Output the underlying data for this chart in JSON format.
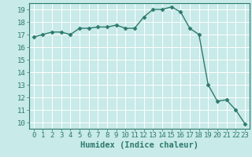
{
  "x": [
    0,
    1,
    2,
    3,
    4,
    5,
    6,
    7,
    8,
    9,
    10,
    11,
    12,
    13,
    14,
    15,
    16,
    17,
    18,
    19,
    20,
    21,
    22,
    23
  ],
  "y": [
    16.8,
    17.0,
    17.2,
    17.2,
    17.0,
    17.5,
    17.5,
    17.6,
    17.6,
    17.75,
    17.5,
    17.5,
    18.4,
    19.0,
    19.0,
    19.2,
    18.8,
    17.5,
    17.0,
    13.0,
    11.7,
    11.8,
    11.0,
    9.9
  ],
  "line_color": "#2d7a6e",
  "marker": "D",
  "marker_size": 2.5,
  "bg_color": "#c8eae8",
  "grid_color": "#ffffff",
  "xlabel": "Humidex (Indice chaleur)",
  "xlim": [
    -0.5,
    23.5
  ],
  "ylim": [
    9.5,
    19.5
  ],
  "yticks": [
    10,
    11,
    12,
    13,
    14,
    15,
    16,
    17,
    18,
    19
  ],
  "xticks": [
    0,
    1,
    2,
    3,
    4,
    5,
    6,
    7,
    8,
    9,
    10,
    11,
    12,
    13,
    14,
    15,
    16,
    17,
    18,
    19,
    20,
    21,
    22,
    23
  ],
  "xlabel_fontsize": 7.5,
  "tick_fontsize": 6.5,
  "line_width": 1.0
}
